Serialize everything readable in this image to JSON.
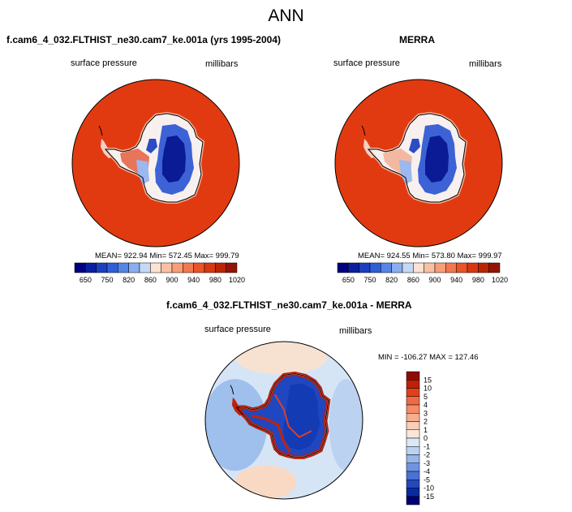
{
  "page": {
    "title": "ANN"
  },
  "panels": {
    "model": {
      "title": "f.cam6_4_032.FLTHIST_ne30.cam7_ke.001a (yrs 1995-2004)",
      "left_label": "surface pressure",
      "right_label": "millibars",
      "stats": "MEAN= 922.94  Min= 572.45  Max= 999.79"
    },
    "obs": {
      "title": "MERRA",
      "left_label": "surface pressure",
      "right_label": "millibars",
      "stats": "MEAN= 924.55  Min= 573.80  Max= 999.97"
    },
    "diff": {
      "title": "f.cam6_4_032.FLTHIST_ne30.cam7_ke.001a - MERRA",
      "left_label": "surface pressure",
      "right_label": "millibars",
      "stats": "MIN = -106.27 MAX = 127.46"
    }
  },
  "chart_data": [
    {
      "type": "heatmap",
      "title": "f.cam6_4_032.FLTHIST_ne30.cam7_ke.001a (yrs 1995-2004)",
      "variable": "surface pressure",
      "units": "millibars",
      "projection": "south polar stereographic",
      "mean": 922.94,
      "min": 572.45,
      "max": 999.79,
      "colorbar_ticks": [
        "650",
        "750",
        "820",
        "860",
        "900",
        "940",
        "980",
        "1020"
      ],
      "colorbar_colors": [
        "#00007f",
        "#0a1fa0",
        "#1c3fc0",
        "#2f5ed8",
        "#5585e6",
        "#8aaef0",
        "#c5d8f6",
        "#fbe2d2",
        "#f9c0a2",
        "#f79d78",
        "#f2784e",
        "#e95428",
        "#d9380f",
        "#bb2506",
        "#921405"
      ]
    },
    {
      "type": "heatmap",
      "title": "MERRA",
      "variable": "surface pressure",
      "units": "millibars",
      "projection": "south polar stereographic",
      "mean": 924.55,
      "min": 573.8,
      "max": 999.97,
      "colorbar_ticks": [
        "650",
        "750",
        "820",
        "860",
        "900",
        "940",
        "980",
        "1020"
      ],
      "colorbar_colors": [
        "#00007f",
        "#0a1fa0",
        "#1c3fc0",
        "#2f5ed8",
        "#5585e6",
        "#8aaef0",
        "#c5d8f6",
        "#fbe2d2",
        "#f9c0a2",
        "#f79d78",
        "#f2784e",
        "#e95428",
        "#d9380f",
        "#bb2506",
        "#921405"
      ]
    },
    {
      "type": "heatmap",
      "title": "f.cam6_4_032.FLTHIST_ne30.cam7_ke.001a - MERRA",
      "variable": "surface pressure",
      "units": "millibars",
      "projection": "south polar stereographic",
      "min": -106.27,
      "max": 127.46,
      "colorbar_ticks": [
        "15",
        "10",
        "5",
        "4",
        "3",
        "2",
        "1",
        "0",
        "-1",
        "-2",
        "-3",
        "-4",
        "-5",
        "-10",
        "-15"
      ],
      "colorbar_colors": [
        "#8e0a05",
        "#c02008",
        "#e2401a",
        "#ee6a44",
        "#f48c68",
        "#f7ad8e",
        "#f9cdb6",
        "#fbe6da",
        "#dce8f6",
        "#bcd2f1",
        "#96b6eb",
        "#6f95e0",
        "#4a72d4",
        "#2449bd",
        "#0c2aa0",
        "#000070"
      ]
    }
  ]
}
